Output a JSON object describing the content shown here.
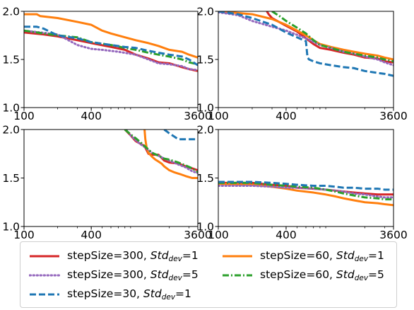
{
  "chart_data": {
    "type": "line",
    "xscale": "log",
    "xlim": [
      100,
      3600
    ],
    "ylim": [
      1.0,
      2.0
    ],
    "xticks": [
      100,
      400,
      3600
    ],
    "xtick_labels": [
      "100",
      "400",
      "3600"
    ],
    "yticks": [
      1.0,
      1.5,
      2.0
    ],
    "ytick_labels": [
      "1.0",
      "1.5",
      "2.0"
    ],
    "grid": false,
    "legend_placement": "bottom",
    "series_styles": [
      {
        "name": "stepSize=300, Std_dev=1",
        "color": "#d62728",
        "dash": "solid"
      },
      {
        "name": "stepSize=60, Std_dev=1",
        "color": "#ff7f0e",
        "dash": "solid"
      },
      {
        "name": "stepSize=300, Std_dev=5",
        "color": "#9467bd",
        "dash": "dotted"
      },
      {
        "name": "stepSize=60, Std_dev=5",
        "color": "#2ca02c",
        "dash": "dashdot"
      },
      {
        "name": "stepSize=30, Std_dev=1",
        "color": "#1f77b4",
        "dash": "dashed"
      }
    ],
    "panels": [
      {
        "series": [
          {
            "name": "stepSize=300, Std_dev=1",
            "x": [
              100,
              150,
              200,
              300,
              400,
              600,
              800,
              1000,
              1300,
              1600,
              2000,
              2600,
              3000,
              3600
            ],
            "y": [
              1.78,
              1.76,
              1.74,
              1.7,
              1.67,
              1.63,
              1.6,
              1.55,
              1.51,
              1.47,
              1.46,
              1.42,
              1.4,
              1.38
            ]
          },
          {
            "name": "stepSize=60, Std_dev=1",
            "x": [
              100,
              130,
              140,
              200,
              300,
              400,
              500,
              600,
              800,
              1000,
              1300,
              1600,
              2000,
              2600,
              3000,
              3600
            ],
            "y": [
              1.97,
              1.97,
              1.95,
              1.93,
              1.89,
              1.86,
              1.8,
              1.77,
              1.73,
              1.7,
              1.67,
              1.64,
              1.6,
              1.58,
              1.55,
              1.52
            ]
          },
          {
            "name": "stepSize=300, Std_dev=5",
            "x": [
              100,
              200,
              300,
              400,
              500,
              700,
              1000,
              1300,
              1600,
              2000,
              2600,
              3000,
              3600
            ],
            "y": [
              1.8,
              1.76,
              1.65,
              1.61,
              1.6,
              1.58,
              1.55,
              1.5,
              1.46,
              1.45,
              1.43,
              1.4,
              1.39
            ]
          },
          {
            "name": "stepSize=60, Std_dev=5",
            "x": [
              100,
              150,
              200,
              300,
              400,
              600,
              800,
              1000,
              1300,
              1600,
              2000,
              2600,
              3000,
              3600
            ],
            "y": [
              1.8,
              1.77,
              1.75,
              1.73,
              1.68,
              1.65,
              1.62,
              1.6,
              1.57,
              1.55,
              1.53,
              1.5,
              1.47,
              1.45
            ]
          },
          {
            "name": "stepSize=30, Std_dev=1",
            "x": [
              100,
              130,
              150,
              200,
              300,
              400,
              600,
              800,
              1000,
              1300,
              1600,
              2000,
              2600,
              3000,
              3600
            ],
            "y": [
              1.84,
              1.84,
              1.82,
              1.75,
              1.72,
              1.68,
              1.65,
              1.63,
              1.62,
              1.59,
              1.57,
              1.55,
              1.53,
              1.5,
              1.44
            ]
          }
        ]
      },
      {
        "series": [
          {
            "name": "stepSize=300, Std_dev=1",
            "x": [
              270,
              280,
              300,
              400,
              500,
              600,
              700,
              800,
              1000,
              1300,
              1600,
              2000,
              2600,
              3000,
              3600
            ],
            "y": [
              2.0,
              1.97,
              1.93,
              1.85,
              1.79,
              1.72,
              1.66,
              1.62,
              1.6,
              1.57,
              1.55,
              1.52,
              1.51,
              1.48,
              1.47
            ]
          },
          {
            "name": "stepSize=60, Std_dev=1",
            "x": [
              100,
              200,
              300,
              400,
              500,
              600,
              700,
              800,
              1000,
              1300,
              1600,
              2000,
              2600,
              3000,
              3600
            ],
            "y": [
              2.0,
              1.97,
              1.92,
              1.86,
              1.8,
              1.75,
              1.7,
              1.66,
              1.63,
              1.6,
              1.58,
              1.56,
              1.54,
              1.52,
              1.5
            ]
          },
          {
            "name": "stepSize=300, Std_dev=5",
            "x": [
              100,
              150,
              200,
              300,
              400,
              600,
              800,
              1000,
              1300,
              1600,
              2000,
              2600,
              3000,
              3600
            ],
            "y": [
              1.99,
              1.96,
              1.9,
              1.84,
              1.8,
              1.72,
              1.65,
              1.62,
              1.58,
              1.56,
              1.53,
              1.5,
              1.47,
              1.44
            ]
          },
          {
            "name": "stepSize=60, Std_dev=5",
            "x": [
              300,
              350,
              400,
              500,
              600,
              700,
              800,
              1000,
              1300,
              1600,
              2000,
              2600,
              3000,
              3600
            ],
            "y": [
              2.0,
              1.95,
              1.9,
              1.83,
              1.77,
              1.7,
              1.65,
              1.62,
              1.58,
              1.56,
              1.54,
              1.52,
              1.5,
              1.48
            ]
          },
          {
            "name": "stepSize=30, Std_dev=1",
            "x": [
              100,
              150,
              200,
              300,
              400,
              500,
              600,
              620,
              640,
              700,
              800,
              1000,
              1300,
              1600,
              2000,
              2600,
              3000,
              3600
            ],
            "y": [
              2.0,
              1.97,
              1.93,
              1.86,
              1.78,
              1.73,
              1.69,
              1.52,
              1.5,
              1.48,
              1.46,
              1.44,
              1.42,
              1.41,
              1.38,
              1.36,
              1.35,
              1.33
            ]
          }
        ]
      },
      {
        "series": [
          {
            "name": "stepSize=300, Std_dev=1",
            "x": [
              800,
              900,
              1000,
              1200,
              1300,
              1400,
              1600,
              1800,
              2000,
              2400,
              2800,
              3200,
              3600
            ],
            "y": [
              2.0,
              1.94,
              1.88,
              1.83,
              1.75,
              1.74,
              1.74,
              1.68,
              1.66,
              1.65,
              1.62,
              1.6,
              1.58
            ]
          },
          {
            "name": "stepSize=60, Std_dev=1",
            "x": [
              1200,
              1220,
              1250,
              1300,
              1400,
              1500,
              1600,
              1700,
              1800,
              2000,
              2200,
              2500,
              2800,
              3000,
              3200,
              3600
            ],
            "y": [
              2.0,
              1.9,
              1.82,
              1.76,
              1.72,
              1.69,
              1.67,
              1.65,
              1.62,
              1.58,
              1.56,
              1.54,
              1.52,
              1.51,
              1.5,
              1.5
            ]
          },
          {
            "name": "stepSize=300, Std_dev=5",
            "x": [
              820,
              900,
              1000,
              1100,
              1200,
              1400,
              1600,
              1800,
              2000,
              2400,
              2800,
              3200,
              3600
            ],
            "y": [
              2.0,
              1.94,
              1.89,
              1.85,
              1.82,
              1.76,
              1.73,
              1.7,
              1.68,
              1.64,
              1.61,
              1.57,
              1.55
            ]
          },
          {
            "name": "stepSize=60, Std_dev=5",
            "x": [
              800,
              900,
              1000,
              1100,
              1200,
              1400,
              1600,
              1800,
              2000,
              2400,
              2800,
              3200,
              3600
            ],
            "y": [
              2.0,
              1.95,
              1.91,
              1.87,
              1.83,
              1.76,
              1.73,
              1.7,
              1.69,
              1.66,
              1.63,
              1.6,
              1.56
            ]
          },
          {
            "name": "stepSize=30, Std_dev=1",
            "x": [
              1800,
              1900,
              2000,
              2200,
              2400,
              2600,
              2800,
              3000,
              3200,
              3600
            ],
            "y": [
              2.0,
              1.98,
              1.96,
              1.93,
              1.9,
              1.9,
              1.9,
              1.9,
              1.9,
              1.9
            ]
          }
        ]
      },
      {
        "series": [
          {
            "name": "stepSize=300, Std_dev=1",
            "x": [
              100,
              200,
              300,
              400,
              500,
              700,
              900,
              1100,
              1300,
              1600,
              2000,
              2600,
              3000,
              3600
            ],
            "y": [
              1.45,
              1.45,
              1.43,
              1.42,
              1.4,
              1.39,
              1.38,
              1.37,
              1.36,
              1.35,
              1.34,
              1.33,
              1.33,
              1.33
            ]
          },
          {
            "name": "stepSize=60, Std_dev=1",
            "x": [
              100,
              200,
              300,
              400,
              500,
              700,
              900,
              1100,
              1300,
              1600,
              2000,
              2600,
              3000,
              3600
            ],
            "y": [
              1.44,
              1.43,
              1.41,
              1.39,
              1.37,
              1.35,
              1.33,
              1.31,
              1.29,
              1.27,
              1.25,
              1.24,
              1.23,
              1.22
            ]
          },
          {
            "name": "stepSize=300, Std_dev=5",
            "x": [
              100,
              200,
              300,
              400,
              500,
              700,
              900,
              1100,
              1300,
              1600,
              2000,
              2600,
              3000,
              3600
            ],
            "y": [
              1.42,
              1.42,
              1.41,
              1.4,
              1.4,
              1.39,
              1.38,
              1.37,
              1.36,
              1.34,
              1.33,
              1.31,
              1.3,
              1.3
            ]
          },
          {
            "name": "stepSize=60, Std_dev=5",
            "x": [
              100,
              200,
              300,
              400,
              500,
              700,
              900,
              1100,
              1300,
              1600,
              2000,
              2600,
              3000,
              3600
            ],
            "y": [
              1.45,
              1.45,
              1.43,
              1.42,
              1.41,
              1.4,
              1.38,
              1.36,
              1.34,
              1.32,
              1.3,
              1.29,
              1.28,
              1.28
            ]
          },
          {
            "name": "stepSize=30, Std_dev=1",
            "x": [
              100,
              200,
              300,
              400,
              500,
              700,
              900,
              1100,
              1300,
              1600,
              2000,
              2600,
              3000,
              3600
            ],
            "y": [
              1.46,
              1.46,
              1.45,
              1.44,
              1.43,
              1.42,
              1.42,
              1.41,
              1.4,
              1.4,
              1.39,
              1.39,
              1.38,
              1.38
            ]
          }
        ]
      }
    ]
  },
  "legend": {
    "items": [
      {
        "prefix": "stepSize=300, ",
        "std_label": "Std",
        "std_sub": "dev",
        "suffix": "=1",
        "color": "#d62728",
        "dash": "solid"
      },
      {
        "prefix": "stepSize=60, ",
        "std_label": "Std",
        "std_sub": "dev",
        "suffix": "=1",
        "color": "#ff7f0e",
        "dash": "solid"
      },
      {
        "prefix": "stepSize=300, ",
        "std_label": "Std",
        "std_sub": "dev",
        "suffix": "=5",
        "color": "#9467bd",
        "dash": "dotted"
      },
      {
        "prefix": "stepSize=60, ",
        "std_label": "Std",
        "std_sub": "dev",
        "suffix": "=5",
        "color": "#2ca02c",
        "dash": "dashdot"
      },
      {
        "prefix": "stepSize=30, ",
        "std_label": "Std",
        "std_sub": "dev",
        "suffix": "=1",
        "color": "#1f77b4",
        "dash": "dashed"
      }
    ]
  }
}
